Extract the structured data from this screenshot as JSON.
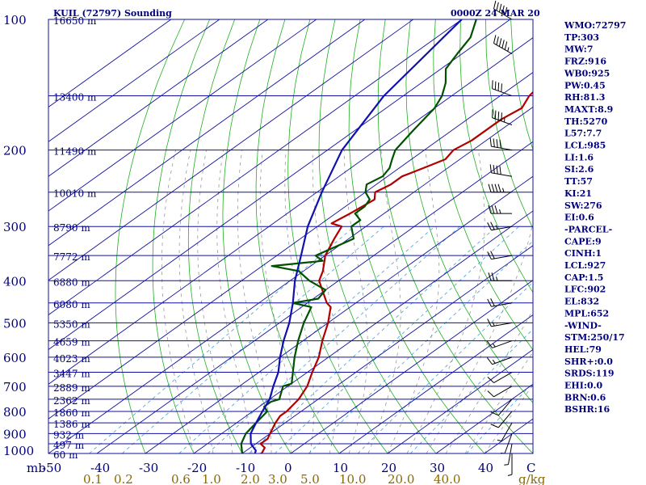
{
  "header": {
    "station": "KUIL (72797) Sounding",
    "time": "0000Z 24 MAR 20"
  },
  "indices": [
    "WMO:72797",
    "TP:303",
    "MW:7",
    "FRZ:916",
    "WB0:925",
    "PW:0.45",
    "RH:81.3",
    "MAXT:8.9",
    "TH:5270",
    "L57:7.7",
    "LCL:985",
    "LI:1.6",
    "SI:2.6",
    "TT:57",
    "KI:21",
    "SW:276",
    "EI:0.6",
    "-PARCEL-",
    "CAPE:9",
    "CINH:1",
    "LCL:927",
    "CAP:1.5",
    "LFC:902",
    "EL:832",
    "MPL:652",
    "-WIND-",
    "STM:250/17",
    "HEL:79",
    "SHR+:0.0",
    "SRDS:119",
    "EHI:0.0",
    "BRN:0.6",
    "BSHR:16"
  ],
  "colors": {
    "isobar": "#1010a0",
    "isotherm": "#1010a0",
    "dry_adiabat": "#20b020",
    "moist_adiabat": "#9a9a9a",
    "mixing_ratio": "#40a0d8",
    "temperature": "#b00000",
    "dewpoint": "#005000",
    "parcel": "#1010b0",
    "label": "#00007a",
    "mixing_label": "#8a6a00"
  },
  "chart_data": {
    "type": "skew-t",
    "xlabel_unit": "C",
    "pressure_unit": "mb",
    "pressure_ticks": [
      100,
      200,
      300,
      400,
      500,
      600,
      700,
      800,
      900,
      1000
    ],
    "temp_ticks": [
      "-50",
      "-40",
      "-30",
      "-20",
      "-10",
      "0",
      "10",
      "20",
      "30",
      "40"
    ],
    "temp_range": [
      -50,
      50
    ],
    "pressure_range": [
      1000,
      100
    ],
    "mixing_ratio_unit": "g/kg",
    "mixing_ratio_labels": [
      "0.1",
      "0.2",
      "0.6",
      "1.0",
      "2.0",
      "3.0",
      "5.0",
      "10.0",
      "20.0",
      "40.0"
    ],
    "height_labels": [
      {
        "p": 100,
        "h": "16650 m"
      },
      {
        "p": 150,
        "h": "13400 m"
      },
      {
        "p": 200,
        "h": "11490 m"
      },
      {
        "p": 250,
        "h": "10010 m"
      },
      {
        "p": 300,
        "h": "8790 m"
      },
      {
        "p": 350,
        "h": "7772 m"
      },
      {
        "p": 400,
        "h": "6880 m"
      },
      {
        "p": 450,
        "h": "6080 m"
      },
      {
        "p": 500,
        "h": "5350 m"
      },
      {
        "p": 550,
        "h": "4659 m"
      },
      {
        "p": 600,
        "h": "4023 m"
      },
      {
        "p": 650,
        "h": "3447 m"
      },
      {
        "p": 700,
        "h": "2889 m"
      },
      {
        "p": 750,
        "h": "2362 m"
      },
      {
        "p": 800,
        "h": "1860 m"
      },
      {
        "p": 850,
        "h": "1386 m"
      },
      {
        "p": 900,
        "h": "932 m"
      },
      {
        "p": 950,
        "h": "497 m"
      },
      {
        "p": 1000,
        "h": "60 m"
      }
    ],
    "series": [
      {
        "key": "temperature",
        "points": [
          [
            1010,
            -7
          ],
          [
            1000,
            -6
          ],
          [
            970,
            -7
          ],
          [
            950,
            -9
          ],
          [
            925,
            -9
          ],
          [
            900,
            -10
          ],
          [
            850,
            -12
          ],
          [
            820,
            -13
          ],
          [
            800,
            -13
          ],
          [
            750,
            -14
          ],
          [
            700,
            -16
          ],
          [
            650,
            -19
          ],
          [
            600,
            -22
          ],
          [
            550,
            -26
          ],
          [
            500,
            -30
          ],
          [
            460,
            -34
          ],
          [
            450,
            -36
          ],
          [
            400,
            -44
          ],
          [
            380,
            -46
          ],
          [
            350,
            -50
          ],
          [
            320,
            -53
          ],
          [
            300,
            -55
          ],
          [
            295,
            -58
          ],
          [
            280,
            -57
          ],
          [
            260,
            -56
          ],
          [
            250,
            -58
          ],
          [
            240,
            -57
          ],
          [
            230,
            -57
          ],
          [
            220,
            -55
          ],
          [
            210,
            -53
          ],
          [
            200,
            -54
          ],
          [
            190,
            -53
          ],
          [
            170,
            -53
          ],
          [
            160,
            -52
          ],
          [
            150,
            -54
          ],
          [
            140,
            -55
          ],
          [
            130,
            -56
          ],
          [
            120,
            -58
          ],
          [
            110,
            -58
          ],
          [
            100,
            -60
          ]
        ]
      },
      {
        "key": "dewpoint",
        "points": [
          [
            1010,
            -9
          ],
          [
            1000,
            -10
          ],
          [
            950,
            -13
          ],
          [
            900,
            -15
          ],
          [
            850,
            -16
          ],
          [
            800,
            -17
          ],
          [
            780,
            -19
          ],
          [
            760,
            -19
          ],
          [
            750,
            -18
          ],
          [
            700,
            -21
          ],
          [
            690,
            -20
          ],
          [
            650,
            -23
          ],
          [
            600,
            -27
          ],
          [
            550,
            -31
          ],
          [
            500,
            -35
          ],
          [
            460,
            -38
          ],
          [
            450,
            -43
          ],
          [
            440,
            -39
          ],
          [
            420,
            -40
          ],
          [
            400,
            -46
          ],
          [
            380,
            -51
          ],
          [
            370,
            -58
          ],
          [
            360,
            -49
          ],
          [
            350,
            -52
          ],
          [
            330,
            -50
          ],
          [
            320,
            -49
          ],
          [
            300,
            -53
          ],
          [
            290,
            -53
          ],
          [
            280,
            -56
          ],
          [
            270,
            -56
          ],
          [
            260,
            -57
          ],
          [
            250,
            -60
          ],
          [
            240,
            -62
          ],
          [
            230,
            -61
          ],
          [
            220,
            -62
          ],
          [
            210,
            -64
          ],
          [
            200,
            -66
          ],
          [
            180,
            -68
          ],
          [
            160,
            -70
          ],
          [
            150,
            -72
          ],
          [
            140,
            -75
          ],
          [
            130,
            -79
          ],
          [
            120,
            -81
          ],
          [
            110,
            -83
          ],
          [
            100,
            -87
          ]
        ]
      },
      {
        "key": "parcel",
        "points": [
          [
            1010,
            -7
          ],
          [
            985,
            -8
          ],
          [
            950,
            -11
          ],
          [
            900,
            -14
          ],
          [
            850,
            -16
          ],
          [
            800,
            -18
          ],
          [
            750,
            -20
          ],
          [
            700,
            -23
          ],
          [
            650,
            -26
          ],
          [
            600,
            -30
          ],
          [
            550,
            -34
          ],
          [
            500,
            -38
          ],
          [
            450,
            -43
          ],
          [
            400,
            -49
          ],
          [
            350,
            -55
          ],
          [
            300,
            -62
          ],
          [
            250,
            -69
          ],
          [
            200,
            -77
          ],
          [
            150,
            -84
          ],
          [
            100,
            -90
          ]
        ]
      }
    ],
    "wind_barbs": [
      {
        "p": 100,
        "dir": 300,
        "spd": 50
      },
      {
        "p": 120,
        "dir": 300,
        "spd": 55
      },
      {
        "p": 150,
        "dir": 290,
        "spd": 40
      },
      {
        "p": 175,
        "dir": 290,
        "spd": 45
      },
      {
        "p": 200,
        "dir": 280,
        "spd": 40
      },
      {
        "p": 230,
        "dir": 280,
        "spd": 40
      },
      {
        "p": 250,
        "dir": 270,
        "spd": 45
      },
      {
        "p": 280,
        "dir": 270,
        "spd": 35
      },
      {
        "p": 300,
        "dir": 260,
        "spd": 25
      },
      {
        "p": 350,
        "dir": 260,
        "spd": 20
      },
      {
        "p": 400,
        "dir": 270,
        "spd": 25
      },
      {
        "p": 450,
        "dir": 260,
        "spd": 20
      },
      {
        "p": 500,
        "dir": 260,
        "spd": 15
      },
      {
        "p": 550,
        "dir": 250,
        "spd": 15
      },
      {
        "p": 600,
        "dir": 250,
        "spd": 15
      },
      {
        "p": 650,
        "dir": 240,
        "spd": 10
      },
      {
        "p": 700,
        "dir": 240,
        "spd": 10
      },
      {
        "p": 750,
        "dir": 220,
        "spd": 10
      },
      {
        "p": 800,
        "dir": 220,
        "spd": 10
      },
      {
        "p": 850,
        "dir": 210,
        "spd": 5
      },
      {
        "p": 900,
        "dir": 200,
        "spd": 5
      },
      {
        "p": 950,
        "dir": 190,
        "spd": 5
      },
      {
        "p": 1000,
        "dir": 180,
        "spd": 5
      }
    ]
  }
}
